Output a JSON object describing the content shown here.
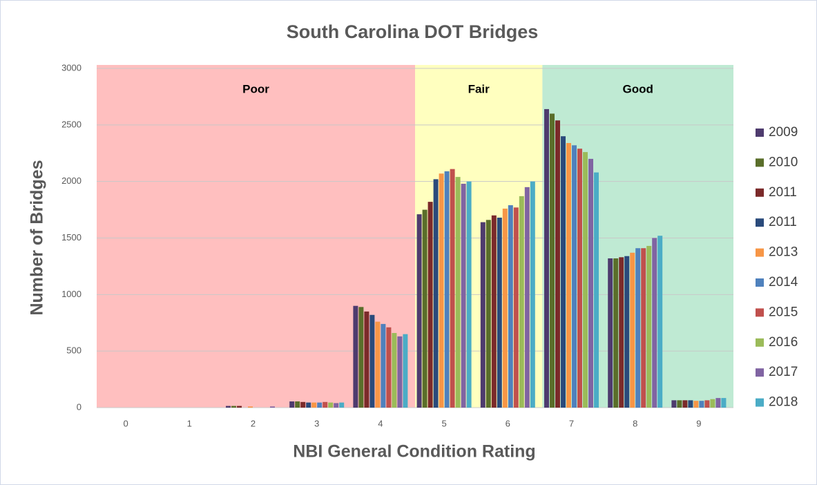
{
  "chart_data": {
    "type": "bar",
    "title": "South Carolina DOT Bridges",
    "x_label": "NBI General Condition Rating",
    "y_label": "Number of Bridges",
    "categories": [
      "0",
      "1",
      "2",
      "3",
      "4",
      "5",
      "6",
      "7",
      "8",
      "9"
    ],
    "series": [
      {
        "name": "2009",
        "color": "#4e3b6e",
        "values": [
          0,
          0,
          15,
          55,
          900,
          1710,
          1640,
          2640,
          1320,
          65
        ]
      },
      {
        "name": "2010",
        "color": "#5a6e2a",
        "values": [
          0,
          0,
          15,
          55,
          890,
          1750,
          1660,
          2600,
          1320,
          65
        ]
      },
      {
        "name": "2011",
        "color": "#7b2a2a",
        "values": [
          0,
          0,
          15,
          50,
          850,
          1820,
          1700,
          2540,
          1330,
          65
        ]
      },
      {
        "name": "2011",
        "color": "#2a4a7b",
        "values": [
          0,
          0,
          0,
          45,
          820,
          2020,
          1680,
          2400,
          1340,
          65
        ]
      },
      {
        "name": "2013",
        "color": "#f79646",
        "values": [
          0,
          0,
          10,
          45,
          760,
          2070,
          1760,
          2340,
          1370,
          60
        ]
      },
      {
        "name": "2014",
        "color": "#4f81bd",
        "values": [
          0,
          0,
          0,
          45,
          740,
          2090,
          1790,
          2320,
          1410,
          60
        ]
      },
      {
        "name": "2015",
        "color": "#c0504d",
        "values": [
          0,
          0,
          0,
          50,
          710,
          2110,
          1770,
          2290,
          1410,
          65
        ]
      },
      {
        "name": "2016",
        "color": "#9bbb59",
        "values": [
          0,
          0,
          0,
          45,
          660,
          2040,
          1870,
          2260,
          1430,
          75
        ]
      },
      {
        "name": "2017",
        "color": "#8064a2",
        "values": [
          0,
          0,
          10,
          40,
          630,
          1980,
          1950,
          2200,
          1500,
          85
        ]
      },
      {
        "name": "2018",
        "color": "#4bacc6",
        "values": [
          0,
          0,
          0,
          45,
          650,
          2000,
          2000,
          2080,
          1520,
          85
        ]
      }
    ],
    "bands": [
      {
        "label": "Poor",
        "from": "0",
        "to": "4",
        "color": "#ffbfbf"
      },
      {
        "label": "Fair",
        "from": "5",
        "to": "6",
        "color": "#ffffbf"
      },
      {
        "label": "Good",
        "from": "7",
        "to": "9",
        "color": "#bfead3"
      }
    ],
    "ylim": [
      0,
      3000
    ],
    "yticks": [
      0,
      500,
      1000,
      1500,
      2000,
      2500,
      3000
    ],
    "grid": true,
    "legend": "right"
  }
}
